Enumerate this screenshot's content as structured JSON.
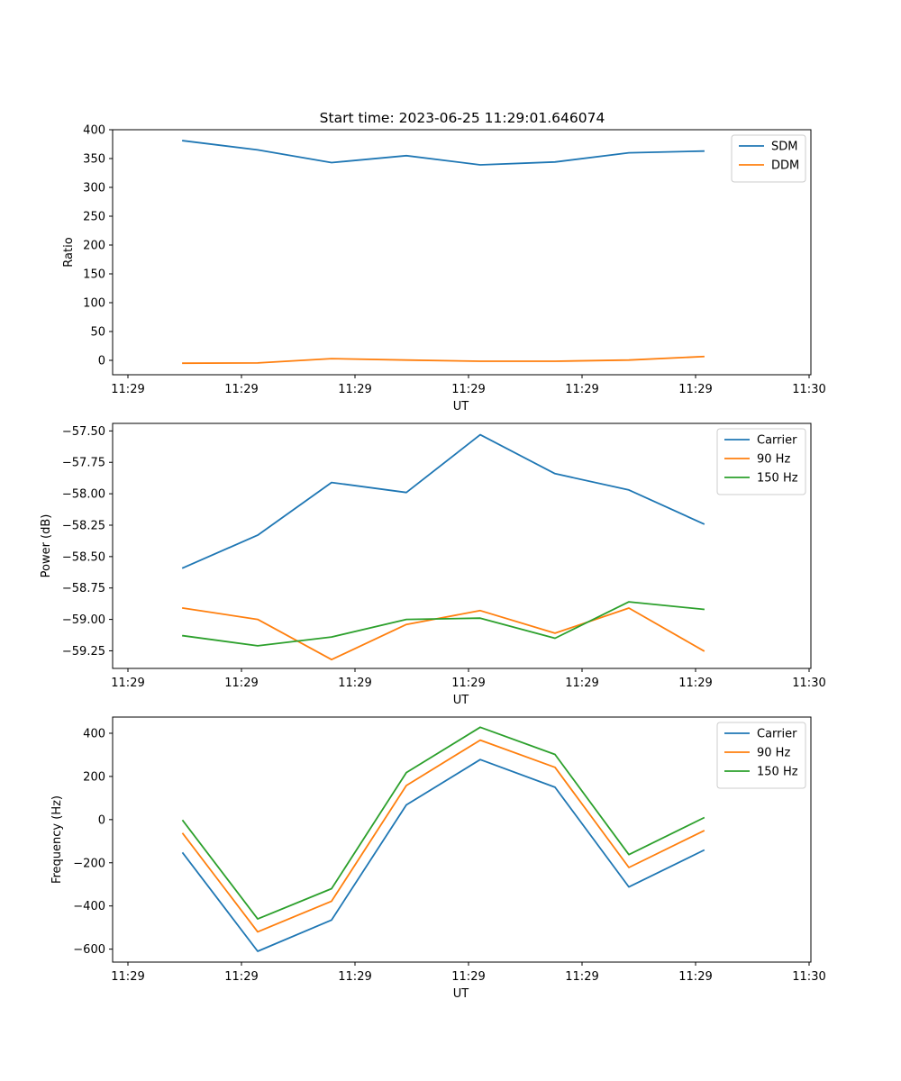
{
  "figure": {
    "title": "Start time: 2023-06-25 11:29:01.646074"
  },
  "colors": {
    "blue": "#1f77b4",
    "orange": "#ff7f0e",
    "green": "#2ca02c"
  },
  "chart_data": [
    {
      "type": "line",
      "title": "Start time: 2023-06-25 11:29:01.646074",
      "xlabel": "UT",
      "ylabel": "Ratio",
      "x_ticks": [
        "11:29",
        "11:29",
        "11:29",
        "11:29",
        "11:29",
        "11:29",
        "11:30"
      ],
      "y_ticks": [
        0,
        50,
        100,
        150,
        200,
        250,
        300,
        350,
        400
      ],
      "ylim": [
        -25,
        400
      ],
      "legend_position": "top-right",
      "grid": false,
      "series": [
        {
          "name": "SDM",
          "color": "#1f77b4",
          "values": [
            381,
            365,
            343,
            355,
            339,
            344,
            360,
            363
          ]
        },
        {
          "name": "DDM",
          "color": "#ff7f0e",
          "values": [
            -5,
            -4.5,
            3,
            0.5,
            -1.5,
            -1.5,
            0.5,
            6.5
          ]
        }
      ]
    },
    {
      "type": "line",
      "xlabel": "UT",
      "ylabel": "Power (dB)",
      "x_ticks": [
        "11:29",
        "11:29",
        "11:29",
        "11:29",
        "11:29",
        "11:29",
        "11:30"
      ],
      "y_ticks": [
        "−57.50",
        "−57.75",
        "−58.00",
        "−58.25",
        "−58.50",
        "−58.75",
        "−59.00",
        "−59.25"
      ],
      "y_tick_values": [
        -57.5,
        -57.75,
        -58.0,
        -58.25,
        -58.5,
        -58.75,
        -59.0,
        -59.25
      ],
      "ylim": [
        -59.39,
        -57.44
      ],
      "legend_position": "top-right",
      "grid": false,
      "series": [
        {
          "name": "Carrier",
          "color": "#1f77b4",
          "values": [
            -58.59,
            -58.33,
            -57.91,
            -57.99,
            -57.53,
            -57.84,
            -57.97,
            -58.24
          ]
        },
        {
          "name": "90 Hz",
          "color": "#ff7f0e",
          "values": [
            -58.91,
            -59.0,
            -59.32,
            -59.04,
            -58.93,
            -59.11,
            -58.91,
            -59.25
          ]
        },
        {
          "name": "150 Hz",
          "color": "#2ca02c",
          "values": [
            -59.13,
            -59.21,
            -59.14,
            -59.0,
            -58.99,
            -59.15,
            -58.86,
            -58.92
          ]
        }
      ]
    },
    {
      "type": "line",
      "xlabel": "UT",
      "ylabel": "Frequency (Hz)",
      "x_ticks": [
        "11:29",
        "11:29",
        "11:29",
        "11:29",
        "11:29",
        "11:29",
        "11:30"
      ],
      "y_ticks": [
        "400",
        "200",
        "0",
        "−200",
        "−400",
        "−600"
      ],
      "y_tick_values": [
        400,
        200,
        0,
        -200,
        -400,
        -600
      ],
      "ylim": [
        -660,
        475
      ],
      "legend_position": "top-right",
      "grid": false,
      "series": [
        {
          "name": "Carrier",
          "color": "#1f77b4",
          "values": [
            -155,
            -610,
            -465,
            68,
            278,
            150,
            -312,
            -142
          ]
        },
        {
          "name": "90 Hz",
          "color": "#ff7f0e",
          "values": [
            -65,
            -520,
            -378,
            158,
            368,
            242,
            -222,
            -52
          ]
        },
        {
          "name": "150 Hz",
          "color": "#2ca02c",
          "values": [
            -5,
            -460,
            -320,
            218,
            428,
            302,
            -162,
            8
          ]
        }
      ]
    }
  ]
}
